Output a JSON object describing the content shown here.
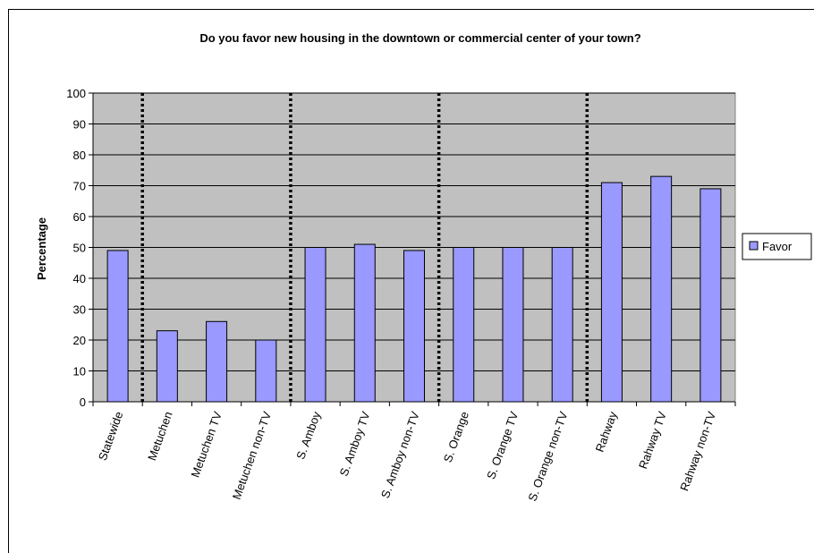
{
  "chart_data": {
    "type": "bar",
    "title": "Do you favor new housing in the downtown or commercial center of your town?",
    "xlabel": "",
    "ylabel": "Percentage",
    "ylim": [
      0,
      100
    ],
    "yticks": [
      0,
      10,
      20,
      30,
      40,
      50,
      60,
      70,
      80,
      90,
      100
    ],
    "categories": [
      "Statewide",
      "Metuchen",
      "Metuchen TV",
      "Metuchen non-TV",
      "S. Amboy",
      "S. Amboy TV",
      "S. Amboy non-TV",
      "S. Orange",
      "S. Orange TV",
      "S. Orange non-TV",
      "Rahway",
      "Rahway TV",
      "Rahway non-TV"
    ],
    "series": [
      {
        "name": "Favor",
        "values": [
          49,
          23,
          26,
          20,
          50,
          51,
          49,
          50,
          50,
          50,
          71,
          73,
          69
        ]
      }
    ],
    "group_separators_after": [
      1,
      4,
      7,
      10
    ],
    "grid": true,
    "legend": "right",
    "colors": {
      "bar": "#9999ff",
      "plot_bg": "#c0c0c0",
      "separator": "#000000",
      "gridline": "#000000"
    }
  }
}
